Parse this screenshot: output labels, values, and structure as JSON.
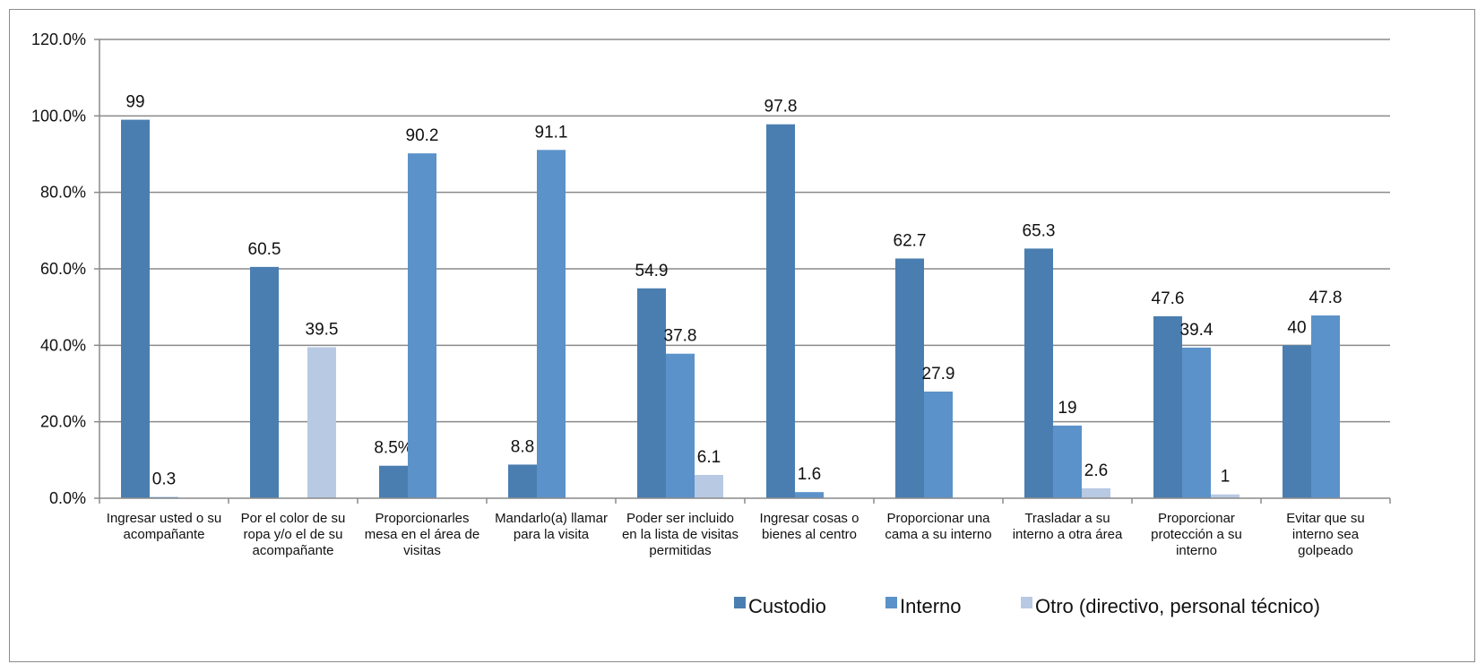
{
  "chart_data": {
    "type": "bar",
    "categories": [
      [
        "Ingresar usted o su",
        "acompañante"
      ],
      [
        "Por el color de su",
        "ropa y/o el de su",
        "acompañante"
      ],
      [
        "Proporcionarles",
        "mesa en el área de",
        "visitas"
      ],
      [
        "Mandarlo(a) llamar",
        "para la visita"
      ],
      [
        "Poder ser incluido",
        "en la lista de visitas",
        "permitidas"
      ],
      [
        "Ingresar cosas o",
        "bienes al centro"
      ],
      [
        "Proporcionar una",
        "cama a su interno"
      ],
      [
        "Trasladar a su",
        "interno a otra área"
      ],
      [
        "Proporcionar",
        "protección a su",
        "interno"
      ],
      [
        "Evitar que su",
        "interno sea",
        "golpeado"
      ]
    ],
    "series": [
      {
        "name": "Custodio",
        "color": "#4a7eb0",
        "values": [
          99,
          60.5,
          8.5,
          8.8,
          54.9,
          97.8,
          62.7,
          65.3,
          47.6,
          40
        ],
        "labels": [
          "99",
          "60.5",
          "8.5%",
          "8.8",
          "54.9",
          "97.8",
          "62.7",
          "65.3",
          "47.6",
          "40"
        ]
      },
      {
        "name": "Interno",
        "color": "#5b92c9",
        "values": [
          0.3,
          null,
          90.2,
          91.1,
          37.8,
          1.6,
          27.9,
          19,
          39.4,
          47.8
        ],
        "labels": [
          "0.3",
          null,
          "90.2",
          "91.1",
          "37.8",
          "1.6",
          "27.9",
          "19",
          "39.4",
          "47.8"
        ]
      },
      {
        "name": "Otro (directivo, personal técnico)",
        "color": "#b8c9e3",
        "values": [
          null,
          39.5,
          null,
          null,
          6.1,
          null,
          null,
          2.6,
          1,
          null
        ],
        "labels": [
          null,
          "39.5",
          null,
          null,
          "6.1",
          null,
          null,
          "2.6",
          "1",
          null
        ]
      }
    ],
    "yticks": [
      "0.0%",
      "20.0%",
      "40.0%",
      "60.0%",
      "80.0%",
      "100.0%",
      "120.0%"
    ],
    "ylim": [
      0,
      120
    ],
    "grid": true,
    "legend": "bottom-right",
    "title": "",
    "xlabel": "",
    "ylabel": ""
  }
}
